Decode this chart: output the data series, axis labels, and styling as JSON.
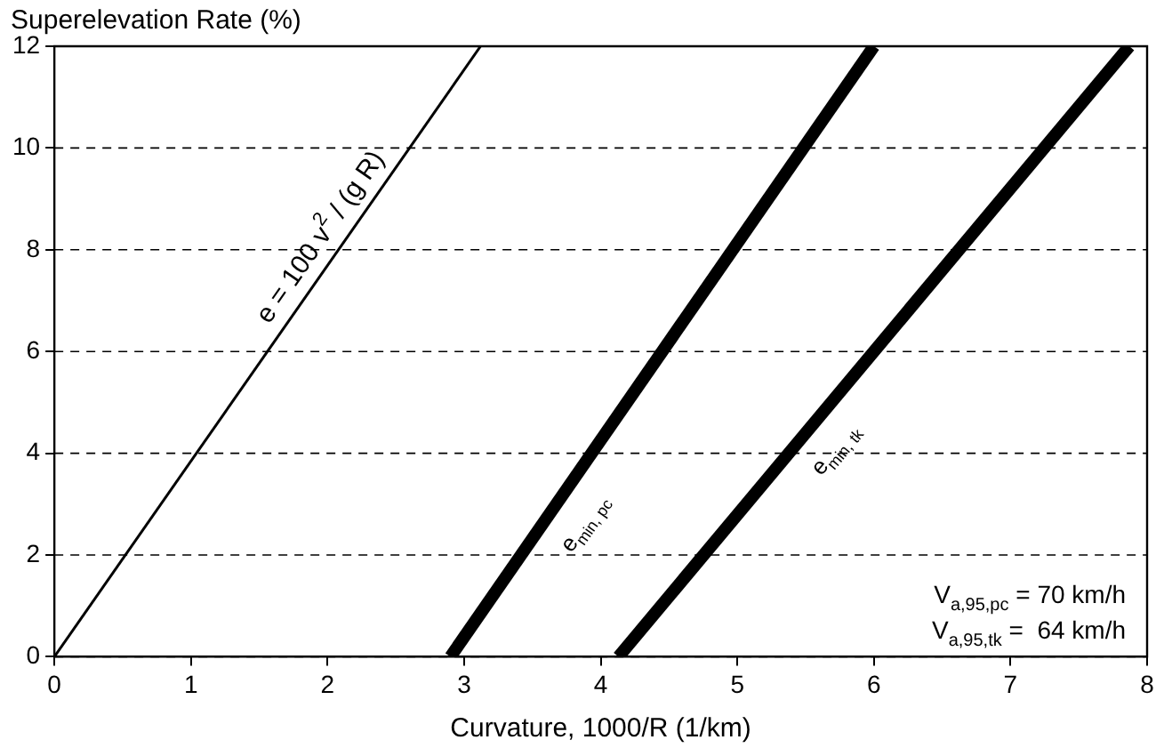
{
  "chart_data": {
    "type": "line",
    "xlabel": "Curvature, 1000/R (1/km)",
    "ylabel": "Superelevation Rate (%)",
    "series": [
      {
        "color": "#000000",
        "x": [
          0,
          3.12
        ],
        "values": [
          0,
          12
        ]
      },
      {
        "color": "#000000",
        "x": [
          2.9,
          6.0
        ],
        "values": [
          0,
          12
        ]
      },
      {
        "color": "#000000",
        "x": [
          4.13,
          7.87
        ],
        "values": [
          0,
          12
        ]
      }
    ],
    "xlim": [
      0,
      8
    ],
    "xticks": [
      0,
      1,
      2,
      3,
      4,
      5,
      6,
      7,
      8
    ],
    "ylim": [
      0,
      12
    ],
    "yticks": [
      0,
      2,
      4,
      6,
      8,
      10,
      12
    ],
    "grid": "y",
    "legend": false,
    "marker": "none",
    "line_style": "solid",
    "annotations": [
      {
        "text": "e = 100 v$^{2}$ / (g R)",
        "x": 2.08,
        "y": 8
      },
      {
        "text": "e$_{min, pc}$",
        "x": 3.68,
        "y": 3
      },
      {
        "text": "e$_{min, tk}$",
        "x": 5.53,
        "y": 4.5
      },
      "V$_{a,95,pc}$ = 70 km/h",
      "V$_{a,95,tk}$ =  64 km/h"
    ]
  }
}
